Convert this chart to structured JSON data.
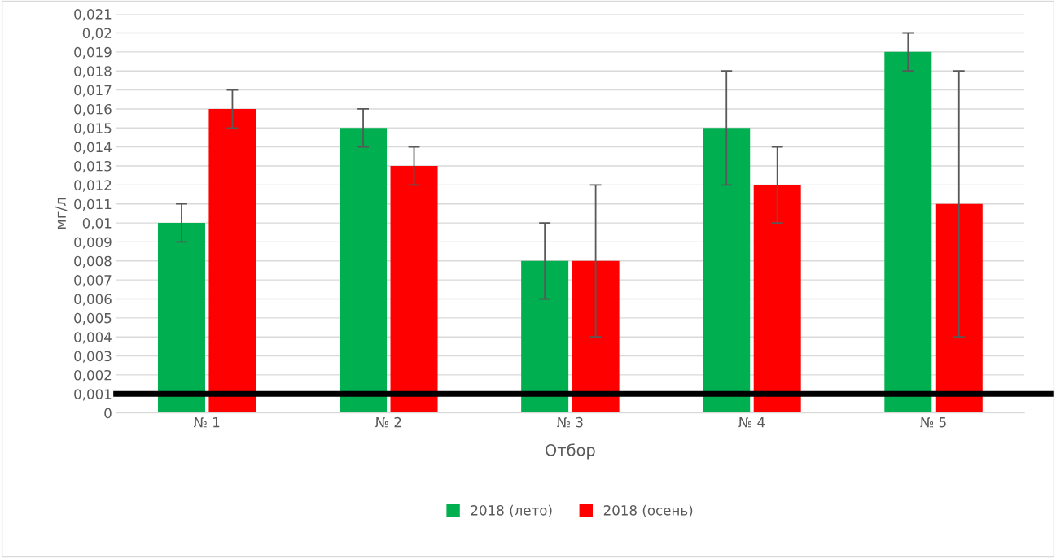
{
  "chart_data": {
    "type": "bar",
    "xlabel": "Отбор",
    "ylabel": "мг/л",
    "categories": [
      "№ 1",
      "№ 2",
      "№ 3",
      "№ 4",
      "№ 5"
    ],
    "series": [
      {
        "name": "2018 (лето)",
        "color": "#00b050",
        "values": [
          0.01,
          0.015,
          0.008,
          0.015,
          0.019
        ],
        "errors": [
          0.001,
          0.001,
          0.002,
          0.003,
          0.001
        ]
      },
      {
        "name": "2018 (осень)",
        "color": "#ff0000",
        "values": [
          0.016,
          0.013,
          0.008,
          0.012,
          0.011
        ],
        "errors": [
          0.001,
          0.001,
          0.004,
          0.002,
          0.007
        ]
      }
    ],
    "ylim": [
      0,
      0.021
    ],
    "yticks": [
      0,
      {
        "value": 0.001,
        "label": "0,001"
      },
      {
        "value": 0.002,
        "label": "0,002"
      },
      {
        "value": 0.003,
        "label": "0,003"
      },
      {
        "value": 0.004,
        "label": "0,004"
      },
      {
        "value": 0.005,
        "label": "0,005"
      },
      {
        "value": 0.006,
        "label": "0,006"
      },
      {
        "value": 0.007,
        "label": "0,007"
      },
      {
        "value": 0.008,
        "label": "0,008"
      },
      {
        "value": 0.009,
        "label": "0,009"
      },
      {
        "value": 0.01,
        "label": "0,01"
      },
      {
        "value": 0.011,
        "label": "0,011"
      },
      {
        "value": 0.012,
        "label": "0,012"
      },
      {
        "value": 0.013,
        "label": "0,013"
      },
      {
        "value": 0.014,
        "label": "0,014"
      },
      {
        "value": 0.015,
        "label": "0,015"
      },
      {
        "value": 0.016,
        "label": "0,016"
      },
      {
        "value": 0.017,
        "label": "0,017"
      },
      {
        "value": 0.018,
        "label": "0,018"
      },
      {
        "value": 0.019,
        "label": "0,019"
      },
      {
        "value": 0.02,
        "label": "0,02"
      },
      {
        "value": 0.021,
        "label": "0,021"
      }
    ],
    "ref_lines": [
      {
        "axis": "y",
        "value": 0.001,
        "color": "#000000",
        "line_style": "solid"
      }
    ],
    "grid": "y",
    "legend": "bottom"
  }
}
